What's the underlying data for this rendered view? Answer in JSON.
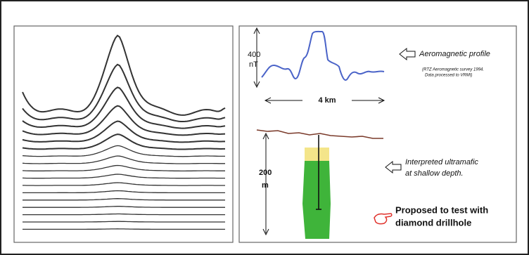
{
  "profile": {
    "scale_value": "400",
    "scale_unit": "nT",
    "distance": "4 km",
    "label": "Aeromagnetic profile",
    "source": [
      "(RTZ Aeromagnetic survey 1994.",
      "Data processed to VRMI)"
    ]
  },
  "section": {
    "depth_value": "200",
    "depth_unit": "m",
    "interpretation": [
      "Interpreted ultramafic",
      "at shallow depth."
    ],
    "proposal": [
      "Proposed to test with",
      "diamond drillhole"
    ]
  }
}
